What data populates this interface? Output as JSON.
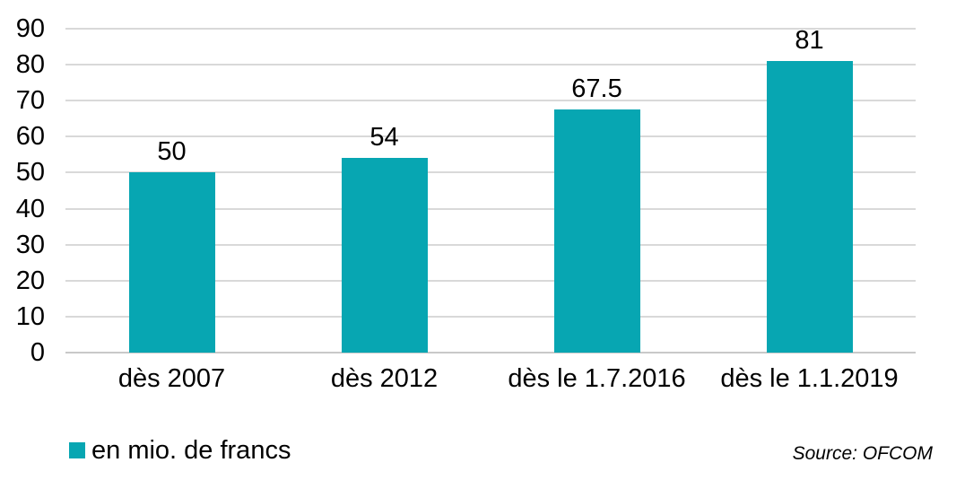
{
  "chart_data": {
    "type": "bar",
    "title": "",
    "categories": [
      "dès 2007",
      "dès 2012",
      "dès le 1.7.2016",
      "dès le 1.1.2019"
    ],
    "values": [
      50,
      54,
      67.5,
      81
    ],
    "value_labels": [
      "50",
      "54",
      "67.5",
      "81"
    ],
    "xlabel": "",
    "ylabel": "",
    "ylim": [
      0,
      90
    ],
    "yticks": [
      0,
      10,
      20,
      30,
      40,
      50,
      60,
      70,
      80,
      90
    ],
    "grid": true,
    "legend": {
      "label": "en mio. de francs",
      "position": "bottom-left"
    }
  },
  "source_note": "Source: OFCOM",
  "colors": {
    "bar": "#07A6B2",
    "gridline": "#D9D9D9",
    "baseline": "#C9C9C9",
    "text": "#000000",
    "background": "#FFFFFF"
  }
}
